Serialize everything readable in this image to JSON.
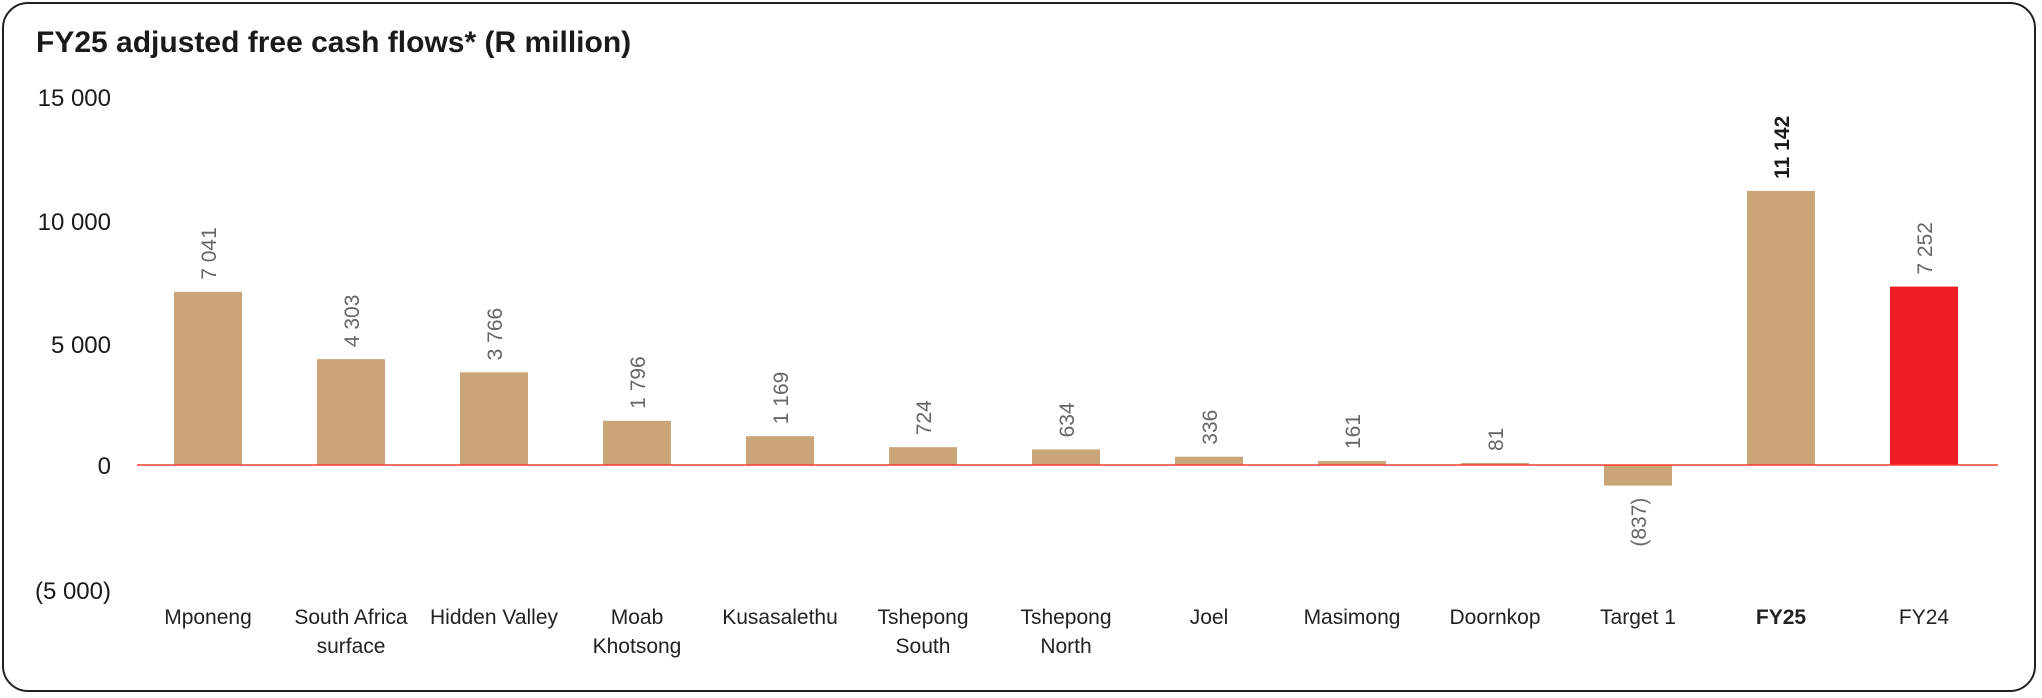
{
  "chart_data": {
    "type": "bar",
    "title": "FY25 adjusted free cash flows* (R million)",
    "xlabel": "",
    "ylabel": "",
    "ylim": [
      -5000,
      15000
    ],
    "yticks": [
      15000,
      10000,
      5000,
      0,
      -5000
    ],
    "ytick_labels": [
      "15 000",
      "10 000",
      "5 000",
      "0",
      "(5 000)"
    ],
    "grid": false,
    "categories": [
      "Mponeng",
      "South Africa surface",
      "Hidden Valley",
      "Moab Khotsong",
      "Kusasalethu",
      "Tshepong South",
      "Tshepong North",
      "Joel",
      "Masimong",
      "Doornkop",
      "Target 1",
      "FY25",
      "FY24"
    ],
    "category_lines": [
      [
        "Mponeng"
      ],
      [
        "South Africa",
        "surface"
      ],
      [
        "Hidden Valley"
      ],
      [
        "Moab",
        "Khotsong"
      ],
      [
        "Kusasalethu"
      ],
      [
        "Tshepong",
        "South"
      ],
      [
        "Tshepong",
        "North"
      ],
      [
        "Joel"
      ],
      [
        "Masimong"
      ],
      [
        "Doornkop"
      ],
      [
        "Target 1"
      ],
      [
        "FY25"
      ],
      [
        "FY24"
      ]
    ],
    "values": [
      7041,
      4303,
      3766,
      1796,
      1169,
      724,
      634,
      336,
      161,
      81,
      -837,
      11142,
      7252
    ],
    "data_labels": [
      "7 041",
      "4 303",
      "3 766",
      "1 796",
      "1 169",
      "724",
      "634",
      "336",
      "161",
      "81",
      "(837)",
      "11 142",
      "7 252"
    ],
    "bold_categories": [
      "FY25"
    ],
    "colors": {
      "bar": "#c9a577",
      "highlight": "#ed1c24",
      "zero_line": "#ff3b30",
      "highlight_category": "FY24"
    }
  }
}
